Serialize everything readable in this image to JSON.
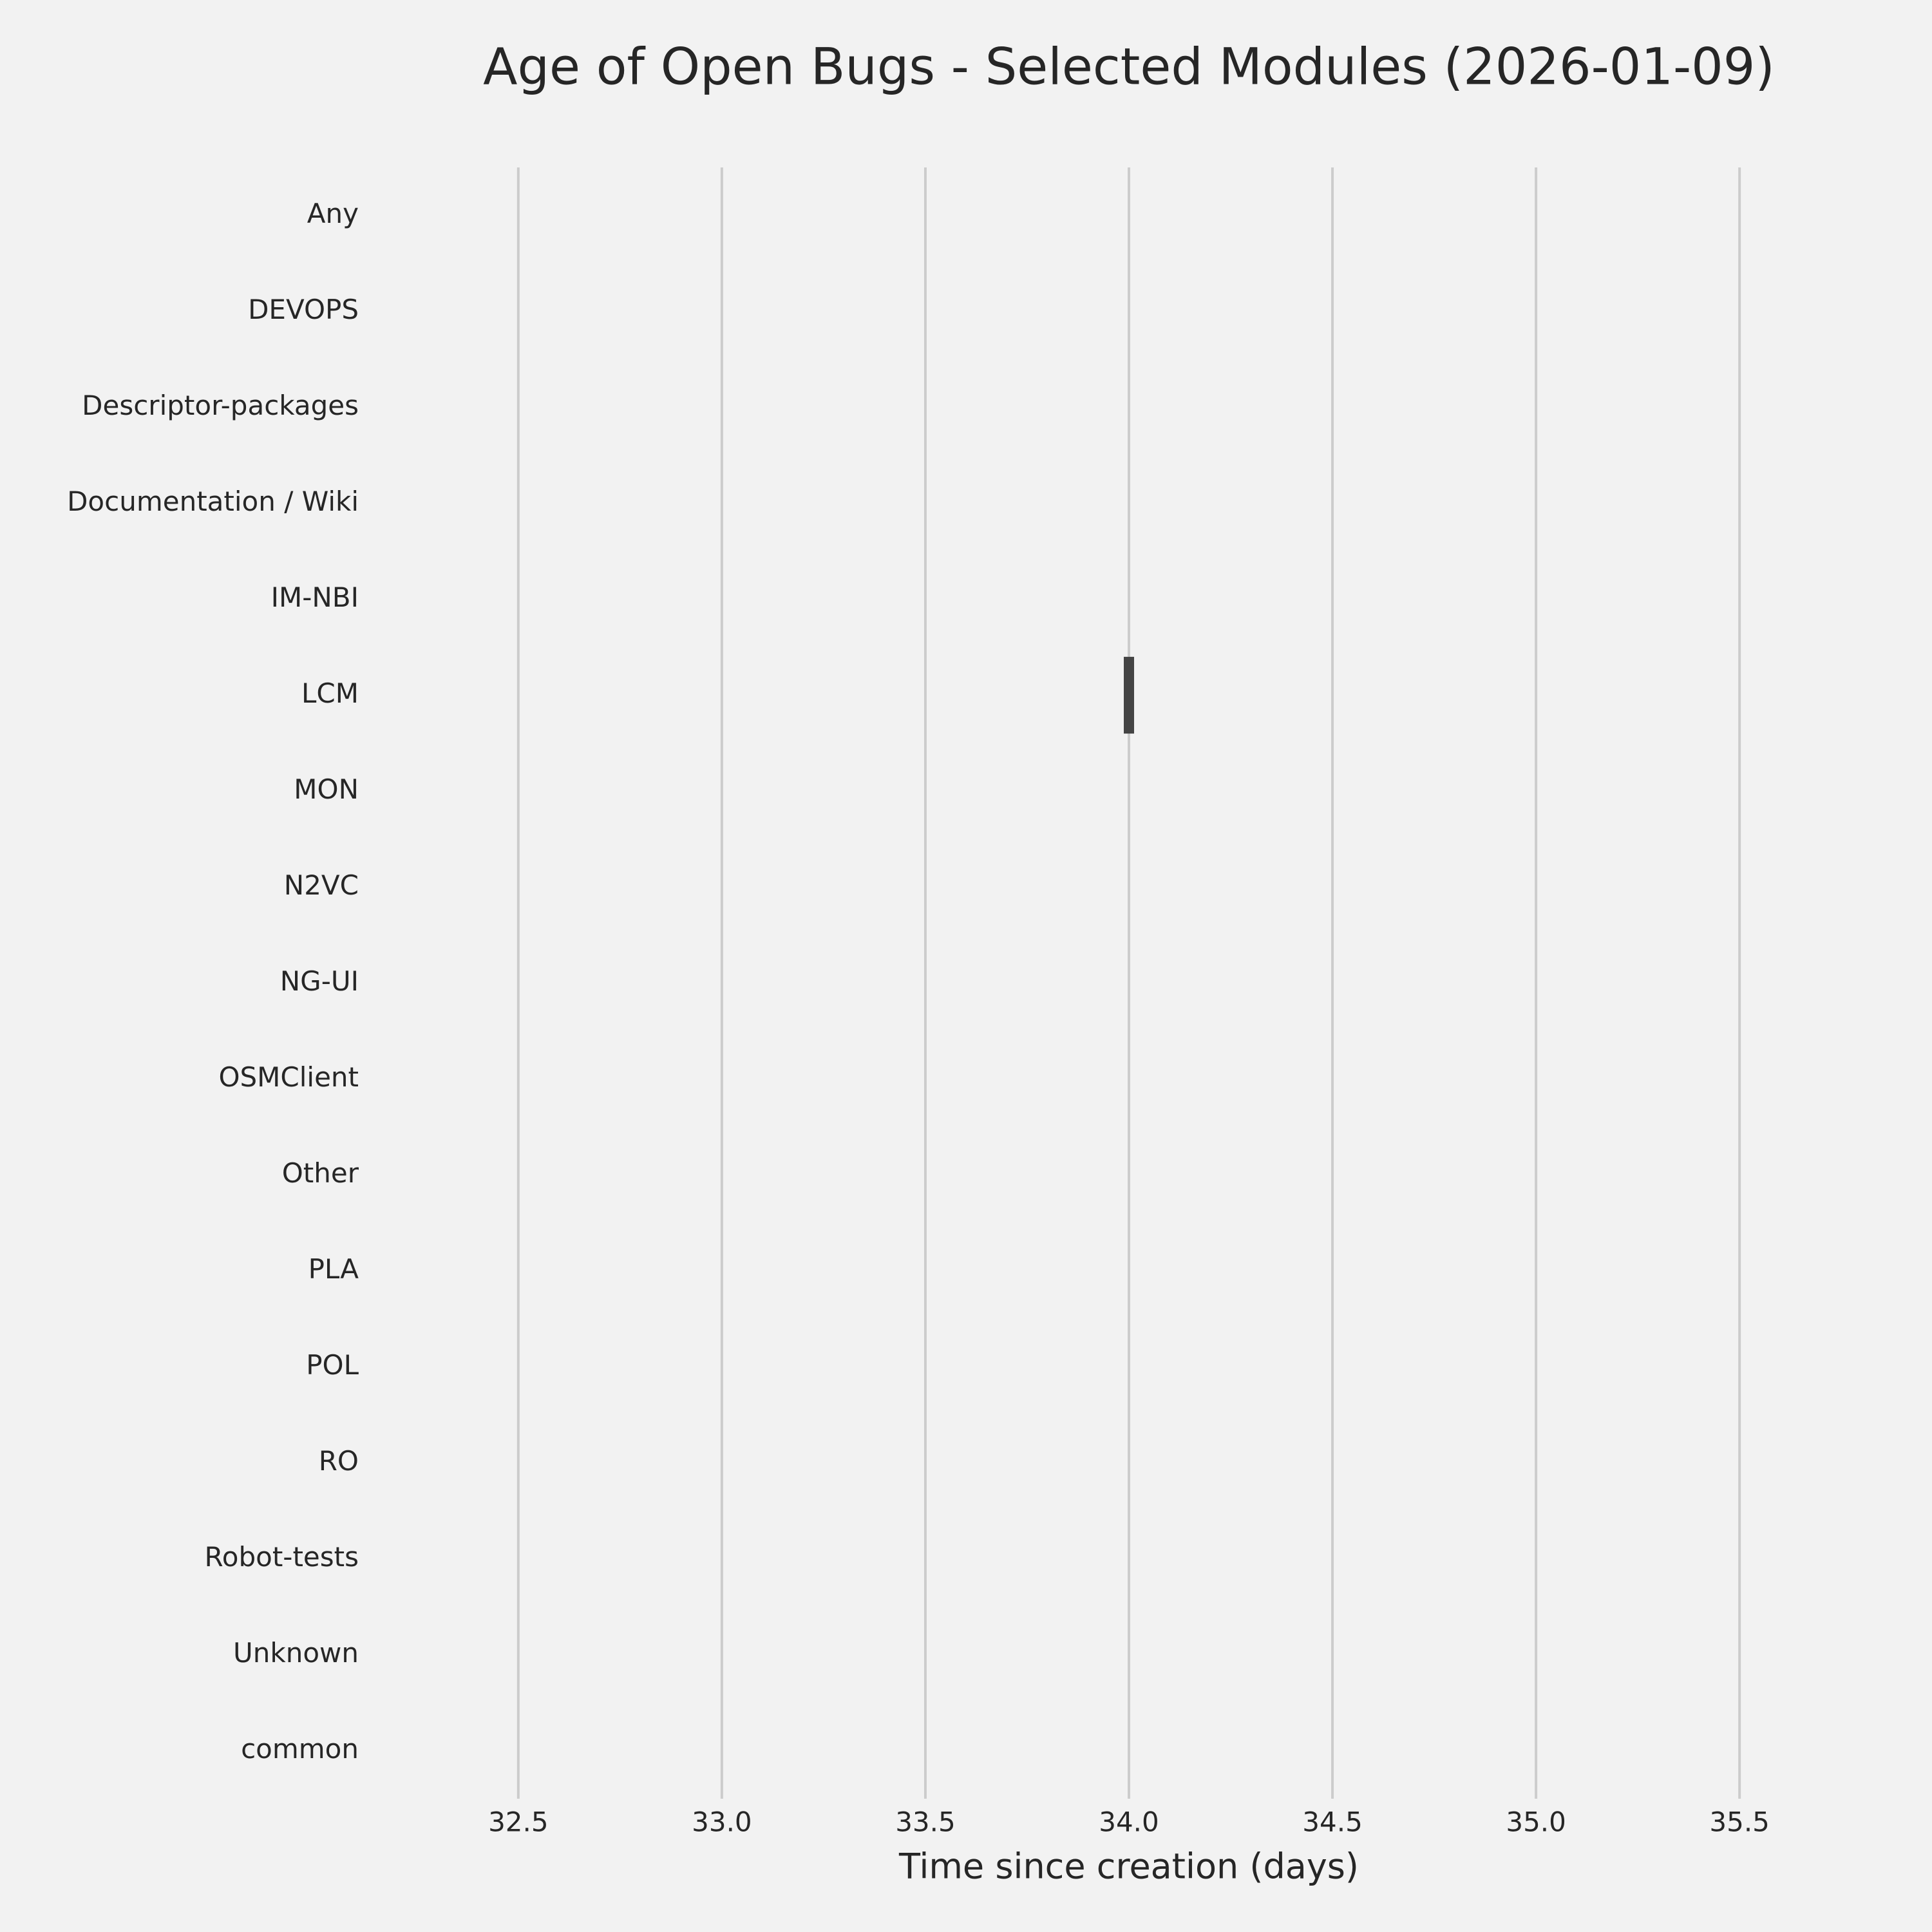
{
  "chart_data": {
    "type": "box",
    "title": "Age of Open Bugs - Selected Modules (2026-01-09)",
    "xlabel": "Time since creation (days)",
    "categories": [
      "Any",
      "DEVOPS",
      "Descriptor-packages",
      "Documentation / Wiki",
      "IM-NBI",
      "LCM",
      "MON",
      "N2VC",
      "NG-UI",
      "OSMClient",
      "Other",
      "PLA",
      "POL",
      "RO",
      "Robot-tests",
      "Unknown",
      "common"
    ],
    "values": [
      null,
      null,
      null,
      null,
      null,
      34,
      null,
      null,
      null,
      null,
      null,
      null,
      null,
      null,
      null,
      null,
      null
    ],
    "color": "#444444",
    "xlim": [
      32.1,
      35.9
    ],
    "xticks": [
      32.5,
      {
        "value": 33,
        "label": "33.0"
      },
      33.5,
      {
        "value": 34,
        "label": "34.0"
      },
      34.5,
      {
        "value": 35,
        "label": "35.0"
      },
      35.5
    ],
    "grid": true
  }
}
